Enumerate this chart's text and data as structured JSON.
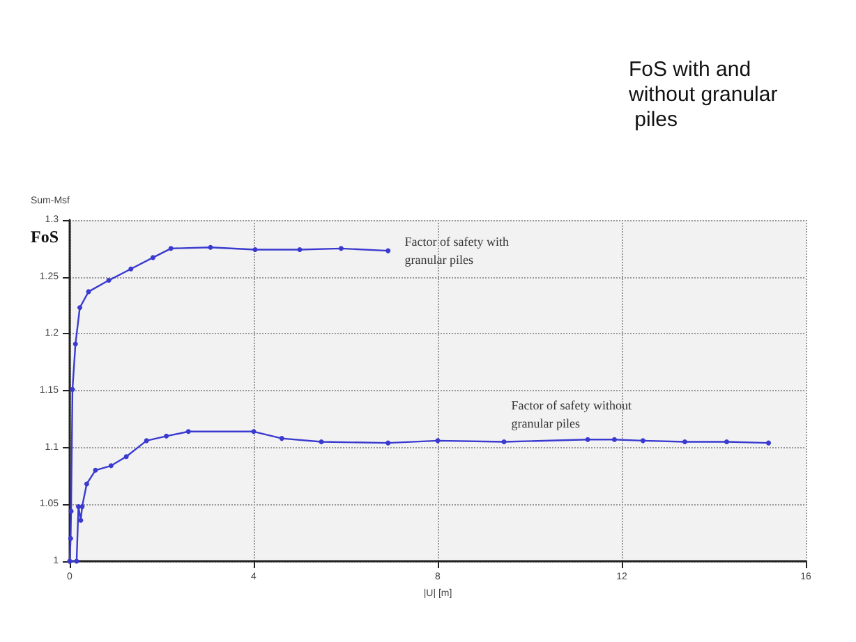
{
  "chart_data": {
    "type": "line",
    "title": "FoS with and without granular piles",
    "xlabel": "|U| [m]",
    "ylabel": "Sum-Msf",
    "series": [
      {
        "color": "#3a3ad0",
        "x": [
          0,
          0.02,
          0.03,
          0.06,
          0.125,
          0.22,
          0.41,
          0.85,
          1.33,
          1.81,
          2.2,
          3.06,
          4.03,
          5.0,
          5.9,
          6.92
        ],
        "values": [
          1.0,
          1.02,
          1.044,
          1.151,
          1.191,
          1.223,
          1.237,
          1.247,
          1.257,
          1.267,
          1.275,
          1.276,
          1.274,
          1.274,
          1.275,
          1.273
        ]
      },
      {
        "color": "#3a3ad0",
        "x": [
          0,
          0.15,
          0.19,
          0.24,
          0.27,
          0.37,
          0.56,
          0.9,
          1.23,
          1.67,
          2.1,
          2.58,
          4.0,
          4.61,
          5.47,
          6.92,
          8,
          9.44,
          11.26,
          11.84,
          12.46,
          13.37,
          14.28,
          15.19
        ],
        "values": [
          1.0,
          1.0,
          1.048,
          1.036,
          1.048,
          1.068,
          1.08,
          1.084,
          1.092,
          1.106,
          1.11,
          1.114,
          1.114,
          1.108,
          1.105,
          1.104,
          1.106,
          1.105,
          1.107,
          1.107,
          1.106,
          1.105,
          1.105,
          1.104
        ]
      }
    ],
    "annotations": [
      "FoS",
      "Factor of safety with granular piles",
      "Factor of safety without granular piles"
    ],
    "xlim": [
      0,
      16
    ],
    "xticks": [
      0,
      4,
      8,
      12,
      16
    ],
    "ylim": [
      1,
      1.3
    ],
    "yticks": [
      1,
      1.05,
      1.1,
      1.15,
      1.2,
      1.25,
      1.3
    ],
    "grid": true,
    "marker": "circle",
    "line_style": "solid"
  }
}
